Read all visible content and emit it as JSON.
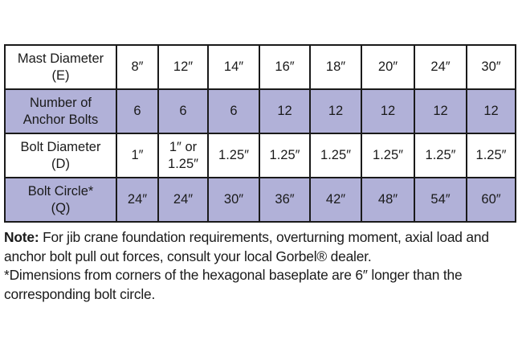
{
  "table": {
    "rows": [
      {
        "label": [
          "Mast Diameter",
          "(E)"
        ],
        "shaded": false,
        "values": [
          [
            "8″"
          ],
          [
            "12″"
          ],
          [
            "14″"
          ],
          [
            "16″"
          ],
          [
            "18″"
          ],
          [
            "20″"
          ],
          [
            "24″"
          ],
          [
            "30″"
          ]
        ]
      },
      {
        "label": [
          "Number of",
          "Anchor Bolts"
        ],
        "shaded": true,
        "values": [
          [
            "6"
          ],
          [
            "6"
          ],
          [
            "6"
          ],
          [
            "12"
          ],
          [
            "12"
          ],
          [
            "12"
          ],
          [
            "12"
          ],
          [
            "12"
          ]
        ]
      },
      {
        "label": [
          "Bolt Diameter",
          "(D)"
        ],
        "shaded": false,
        "values": [
          [
            "1″"
          ],
          [
            "1″ or",
            "1.25″"
          ],
          [
            "1.25″"
          ],
          [
            "1.25″"
          ],
          [
            "1.25″"
          ],
          [
            "1.25″"
          ],
          [
            "1.25″"
          ],
          [
            "1.25″"
          ]
        ]
      },
      {
        "label": [
          "Bolt Circle*",
          "(Q)"
        ],
        "shaded": true,
        "values": [
          [
            "24″"
          ],
          [
            "24″"
          ],
          [
            "30″"
          ],
          [
            "36″"
          ],
          [
            "42″"
          ],
          [
            "48″"
          ],
          [
            "54″"
          ],
          [
            "60″"
          ]
        ]
      }
    ],
    "shade_color": "#b1b1d8"
  },
  "notes": {
    "note_label": "Note:",
    "note_text": " For jib crane foundation requirements, overturning moment, axial load and anchor bolt pull out forces, consult your local Gorbel® dealer.",
    "footnote": "*Dimensions from corners of the hexagonal baseplate are 6″ longer than the corresponding bolt circle."
  }
}
